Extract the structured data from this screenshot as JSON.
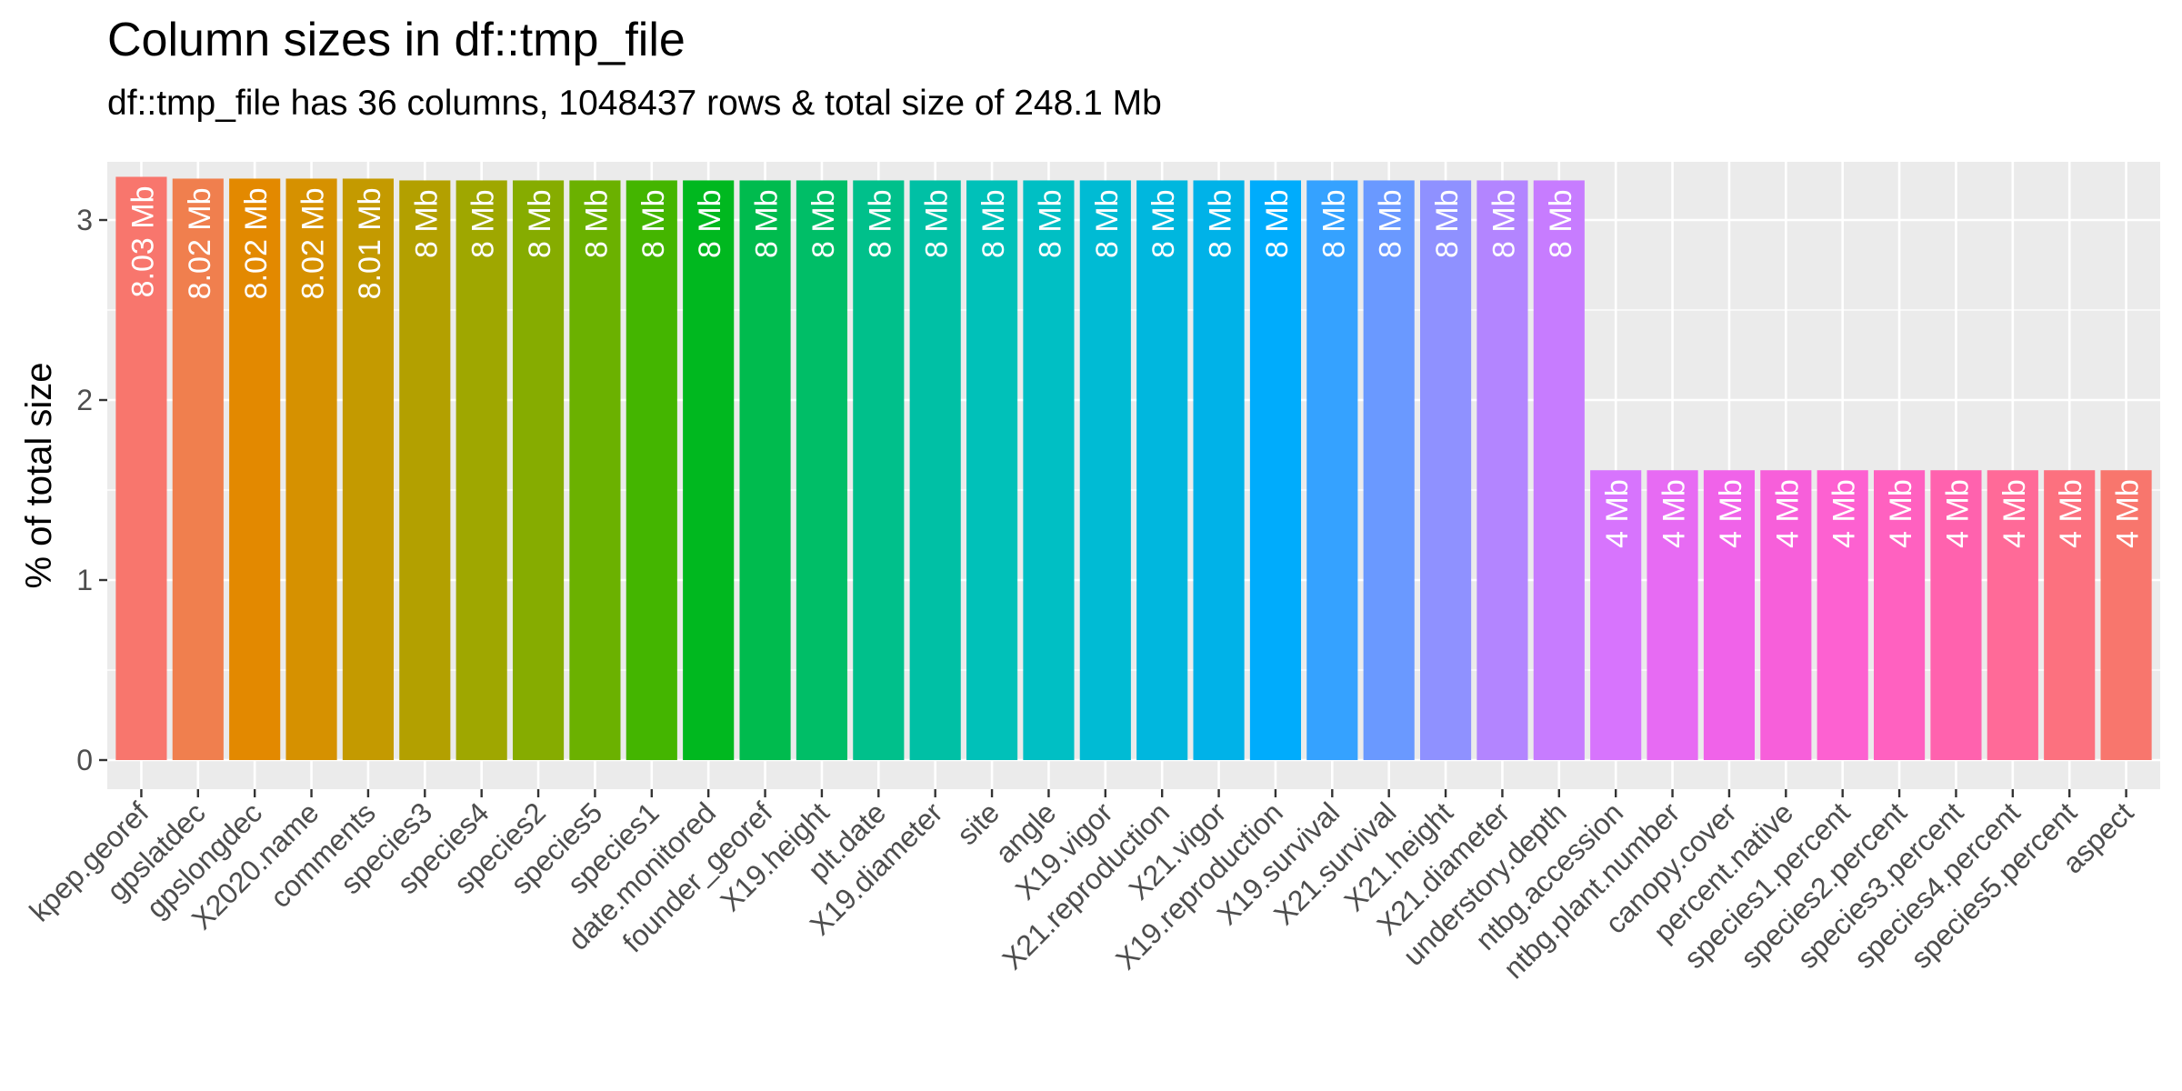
{
  "chart_data": {
    "type": "bar",
    "title": "Column sizes in df::tmp_file",
    "subtitle": "df::tmp_file has 36 columns, 1048437 rows & total size of 248.1 Mb",
    "xlabel": "",
    "ylabel": "% of total size",
    "ylim": [
      0,
      3.3
    ],
    "yticks": [
      0,
      1,
      2,
      3
    ],
    "grid": true,
    "legend": "none",
    "categories": [
      "kpep.georef",
      "gpslatdec",
      "gpslongdec",
      "X2020.name",
      "comments",
      "species3",
      "species4",
      "species2",
      "species5",
      "species1",
      "date.monitored",
      "founder_georef",
      "X19.height",
      "plt.date",
      "X19.diameter",
      "site",
      "angle",
      "X19.vigor",
      "X21.reproduction",
      "X21.vigor",
      "X19.reproduction",
      "X19.survival",
      "X21.survival",
      "X21.height",
      "X21.diameter",
      "understory.depth",
      "ntbg.accession",
      "ntbg.plant.number",
      "canopy.cover",
      "percent.native",
      "species1.percent",
      "species2.percent",
      "species3.percent",
      "species4.percent",
      "species5.percent",
      "aspect"
    ],
    "values": [
      3.24,
      3.23,
      3.23,
      3.23,
      3.23,
      3.22,
      3.22,
      3.22,
      3.22,
      3.22,
      3.22,
      3.22,
      3.22,
      3.22,
      3.22,
      3.22,
      3.22,
      3.22,
      3.22,
      3.22,
      3.22,
      3.22,
      3.22,
      3.22,
      3.22,
      3.22,
      1.61,
      1.61,
      1.61,
      1.61,
      1.61,
      1.61,
      1.61,
      1.61,
      1.61,
      1.61
    ],
    "data_labels": [
      "8.03 Mb",
      "8.02 Mb",
      "8.02 Mb",
      "8.02 Mb",
      "8.01 Mb",
      "8 Mb",
      "8 Mb",
      "8 Mb",
      "8 Mb",
      "8 Mb",
      "8 Mb",
      "8 Mb",
      "8 Mb",
      "8 Mb",
      "8 Mb",
      "8 Mb",
      "8 Mb",
      "8 Mb",
      "8 Mb",
      "8 Mb",
      "8 Mb",
      "8 Mb",
      "8 Mb",
      "8 Mb",
      "8 Mb",
      "8 Mb",
      "4 Mb",
      "4 Mb",
      "4 Mb",
      "4 Mb",
      "4 Mb",
      "4 Mb",
      "4 Mb",
      "4 Mb",
      "4 Mb",
      "4 Mb"
    ],
    "colors": [
      "#F8766D",
      "#F07F4E",
      "#E38900",
      "#D69100",
      "#C49A00",
      "#B3A000",
      "#9FA700",
      "#86AC00",
      "#6BB100",
      "#44B500",
      "#00B81F",
      "#00BB4E",
      "#00BE67",
      "#00C08B",
      "#00C0A5",
      "#00C1B9",
      "#00BFC4",
      "#00BBD4",
      "#00B7DE",
      "#00B2E8",
      "#00ACFC",
      "#35A2FF",
      "#6A99FF",
      "#8F91FF",
      "#B385FF",
      "#C77CFF",
      "#D774FD",
      "#E76BF3",
      "#F063E9",
      "#F75FDA",
      "#FD61D1",
      "#FF61C0",
      "#FF62AE",
      "#FF6A98",
      "#FC717F",
      "#F8766D"
    ]
  }
}
